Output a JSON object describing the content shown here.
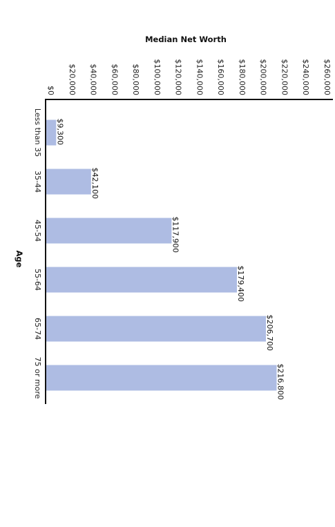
{
  "chart_data": {
    "type": "bar",
    "orientation": "horizontal",
    "title": "",
    "xlabel": "Median Net Worth",
    "ylabel": "Age",
    "categories": [
      "Less than 35",
      "35-44",
      "45-54",
      "55-64",
      "65-74",
      "75 or more"
    ],
    "values": [
      9300,
      42100,
      117900,
      179400,
      206700,
      216800
    ],
    "value_labels": [
      "$9,300",
      "$42,100",
      "$117,900",
      "$179,400",
      "$206,700",
      "$216,800"
    ],
    "xlim": [
      0,
      260000
    ],
    "x_ticks": [
      0,
      20000,
      40000,
      60000,
      80000,
      100000,
      120000,
      140000,
      160000,
      180000,
      200000,
      220000,
      240000,
      260000
    ],
    "x_tick_labels": [
      "$0",
      "$20,000",
      "$40,000",
      "$60,000",
      "$80,000",
      "$100,000",
      "$120,000",
      "$140,000",
      "$160,000",
      "$180,000",
      "$200,000",
      "$220,000",
      "$240,000",
      "$260,000"
    ],
    "bar_color": "#aebce3",
    "axis_color": "#111111",
    "grid": false,
    "legend": "none"
  }
}
